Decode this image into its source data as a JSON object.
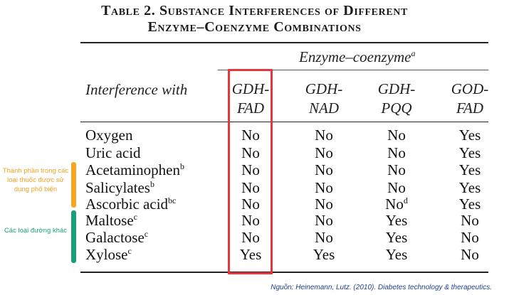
{
  "title_line1": "Table 2. Substance Interferences of Different",
  "title_line2": "Enzyme–Coenzyme Combinations",
  "group_header": "Enzyme–coenzyme",
  "group_header_sup": "a",
  "interference_header": "Interference with",
  "columns": [
    {
      "line1": "GDH-",
      "line2": "FAD"
    },
    {
      "line1": "GDH-",
      "line2": "NAD"
    },
    {
      "line1": "GDH-",
      "line2": "PQQ"
    },
    {
      "line1": "GOD-",
      "line2": "FAD"
    }
  ],
  "rows": [
    {
      "label": "Oxygen",
      "sup": "",
      "values": [
        "No",
        "No",
        "No",
        "Yes"
      ],
      "value_sups": [
        "",
        "",
        "",
        ""
      ]
    },
    {
      "label": "Uric acid",
      "sup": "",
      "values": [
        "No",
        "No",
        "No",
        "Yes"
      ],
      "value_sups": [
        "",
        "",
        "",
        ""
      ]
    },
    {
      "label": "Acetaminophen",
      "sup": "b",
      "values": [
        "No",
        "No",
        "No",
        "Yes"
      ],
      "value_sups": [
        "",
        "",
        "",
        ""
      ]
    },
    {
      "label": "Salicylates",
      "sup": "b",
      "values": [
        "No",
        "No",
        "No",
        "Yes"
      ],
      "value_sups": [
        "",
        "",
        "",
        ""
      ]
    },
    {
      "label": "Ascorbic acid",
      "sup": "bc",
      "values": [
        "No",
        "No",
        "No",
        "Yes"
      ],
      "value_sups": [
        "",
        "",
        "d",
        ""
      ]
    },
    {
      "label": "Maltose",
      "sup": "c",
      "values": [
        "No",
        "No",
        "Yes",
        "No"
      ],
      "value_sups": [
        "",
        "",
        "",
        ""
      ]
    },
    {
      "label": "Galactose",
      "sup": "c",
      "values": [
        "No",
        "No",
        "Yes",
        "No"
      ],
      "value_sups": [
        "",
        "",
        "",
        ""
      ]
    },
    {
      "label": "Xylose",
      "sup": "c",
      "values": [
        "Yes",
        "Yes",
        "Yes",
        "No"
      ],
      "value_sups": [
        "",
        "",
        "",
        ""
      ]
    }
  ],
  "annotations": {
    "drugs_label": "Thành phần trong các loại thuốc được sử dụng phổ biến",
    "sugars_label": "Các loại đường khác"
  },
  "source": "Nguồn: Heinemann, Lutz. (2010). Diabetes technology & therapeutics.",
  "colors": {
    "highlight": "#e3383b",
    "drugs": "#f6a623",
    "sugars": "#1a9e78",
    "source": "#1f3f8f"
  }
}
